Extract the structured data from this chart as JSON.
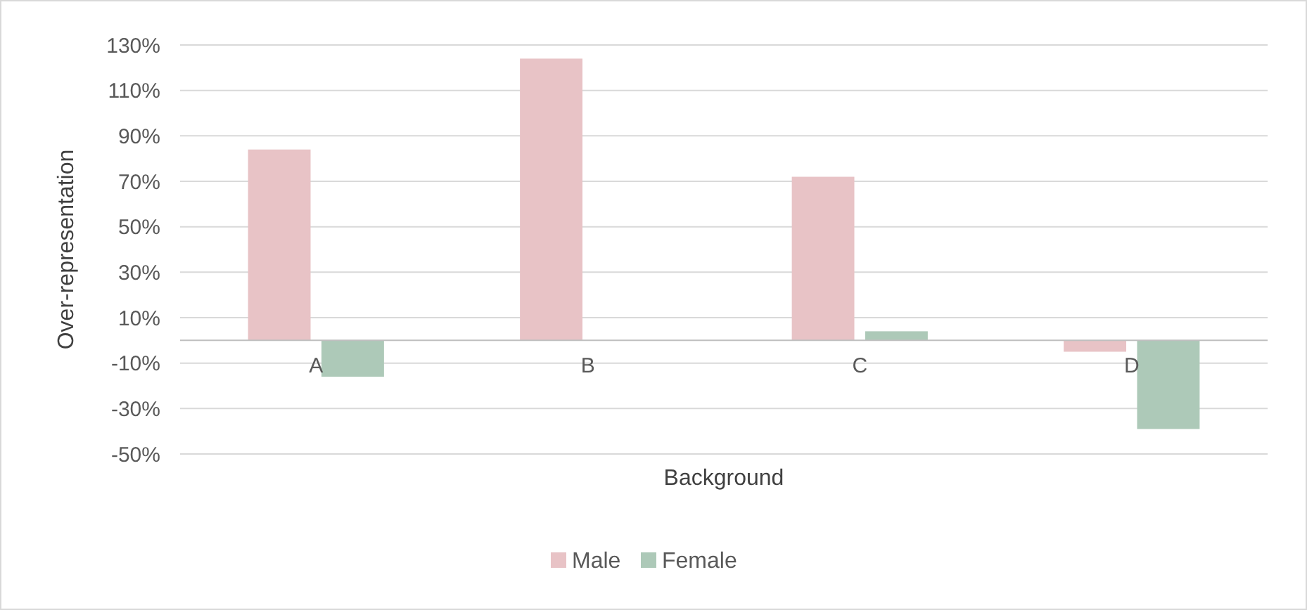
{
  "chart_data": {
    "type": "bar",
    "xlabel": "Background",
    "ylabel": "Over-representation",
    "categories": [
      "A",
      "B",
      "C",
      "D"
    ],
    "series": [
      {
        "name": "Male",
        "color": "#e8c3c6",
        "values": [
          84,
          124,
          72,
          -5
        ]
      },
      {
        "name": "Female",
        "color": "#adc9b8",
        "values": [
          -16,
          0,
          4,
          -39
        ]
      }
    ],
    "ylim": [
      -50,
      130
    ],
    "yticks": [
      {
        "value": -50,
        "label": "-50%"
      },
      {
        "value": -30,
        "label": "-30%"
      },
      {
        "value": -10,
        "label": "-10%"
      },
      {
        "value": 10,
        "label": "10%"
      },
      {
        "value": 30,
        "label": "30%"
      },
      {
        "value": 50,
        "label": "50%"
      },
      {
        "value": 70,
        "label": "70%"
      },
      {
        "value": 90,
        "label": "90%"
      },
      {
        "value": 110,
        "label": "110%"
      },
      {
        "value": 130,
        "label": "130%"
      }
    ],
    "grid": "y",
    "legend": "bottom"
  }
}
